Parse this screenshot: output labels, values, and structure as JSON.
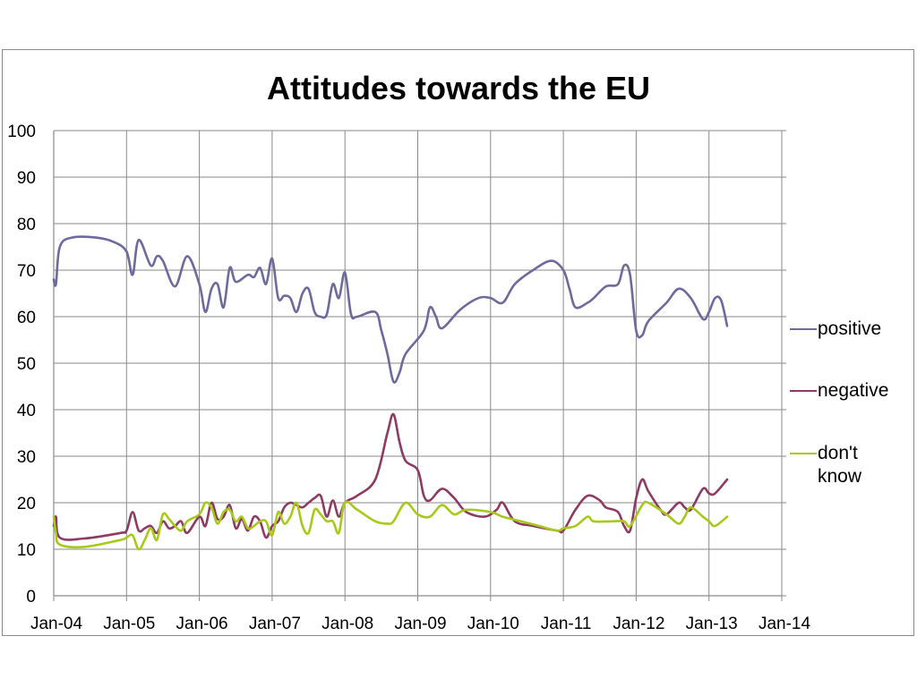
{
  "chart_data": {
    "type": "line",
    "title": "Attitudes towards the EU",
    "xlabel": "",
    "ylabel": "",
    "ylim": [
      0,
      100
    ],
    "yticks": [
      0,
      10,
      20,
      30,
      40,
      50,
      60,
      70,
      80,
      90,
      100
    ],
    "xticks": [
      "Jan-04",
      "Jan-05",
      "Jan-06",
      "Jan-07",
      "Jan-08",
      "Jan-09",
      "Jan-10",
      "Jan-11",
      "Jan-12",
      "Jan-13",
      "Jan-14"
    ],
    "xrange": [
      "2004-01",
      "2014-01"
    ],
    "grid": true,
    "legend_position": "right",
    "series": [
      {
        "name": "positive",
        "color": "#6e6a9c",
        "points": [
          [
            "2004-01",
            68
          ],
          [
            "2004-01",
            67
          ],
          [
            "2004-02",
            75
          ],
          [
            "2004-04",
            77
          ],
          [
            "2004-08",
            77
          ],
          [
            "2004-11",
            76
          ],
          [
            "2005-01",
            74
          ],
          [
            "2005-02",
            69
          ],
          [
            "2005-03",
            76.5
          ],
          [
            "2005-05",
            71
          ],
          [
            "2005-06",
            73
          ],
          [
            "2005-07",
            72
          ],
          [
            "2005-09",
            66.5
          ],
          [
            "2005-11",
            73
          ],
          [
            "2006-01",
            67
          ],
          [
            "2006-02",
            61
          ],
          [
            "2006-03",
            66
          ],
          [
            "2006-04",
            67
          ],
          [
            "2006-05",
            62
          ],
          [
            "2006-06",
            70.5
          ],
          [
            "2006-07",
            67.5
          ],
          [
            "2006-09",
            69
          ],
          [
            "2006-10",
            68.5
          ],
          [
            "2006-11",
            70.5
          ],
          [
            "2006-12",
            67
          ],
          [
            "2007-01",
            72.5
          ],
          [
            "2007-02",
            64
          ],
          [
            "2007-03",
            64.5
          ],
          [
            "2007-04",
            64
          ],
          [
            "2007-05",
            61
          ],
          [
            "2007-06",
            65
          ],
          [
            "2007-07",
            66
          ],
          [
            "2007-08",
            61
          ],
          [
            "2007-09",
            60
          ],
          [
            "2007-10",
            60.5
          ],
          [
            "2007-11",
            67
          ],
          [
            "2007-12",
            64
          ],
          [
            "2008-01",
            69.5
          ],
          [
            "2008-02",
            60.5
          ],
          [
            "2008-03",
            60
          ],
          [
            "2008-06",
            61
          ],
          [
            "2008-07",
            57
          ],
          [
            "2008-08",
            52
          ],
          [
            "2008-09",
            46
          ],
          [
            "2008-10",
            48
          ],
          [
            "2008-11",
            52
          ],
          [
            "2009-02",
            57
          ],
          [
            "2009-03",
            62
          ],
          [
            "2009-04",
            60
          ],
          [
            "2009-05",
            57.5
          ],
          [
            "2009-08",
            61.5
          ],
          [
            "2009-11",
            64
          ],
          [
            "2010-01",
            64
          ],
          [
            "2010-03",
            63
          ],
          [
            "2010-05",
            67
          ],
          [
            "2010-08",
            70
          ],
          [
            "2010-11",
            72
          ],
          [
            "2011-01",
            70
          ],
          [
            "2011-02",
            66
          ],
          [
            "2011-03",
            62
          ],
          [
            "2011-05",
            63
          ],
          [
            "2011-06",
            64
          ],
          [
            "2011-08",
            66.5
          ],
          [
            "2011-10",
            67
          ],
          [
            "2011-11",
            71
          ],
          [
            "2011-12",
            69
          ],
          [
            "2012-01",
            57
          ],
          [
            "2012-02",
            56
          ],
          [
            "2012-03",
            59
          ],
          [
            "2012-06",
            63
          ],
          [
            "2012-08",
            66
          ],
          [
            "2012-10",
            64
          ],
          [
            "2012-12",
            59.5
          ],
          [
            "2013-01",
            61
          ],
          [
            "2013-02",
            64
          ],
          [
            "2013-03",
            63.5
          ],
          [
            "2013-04",
            58
          ]
        ]
      },
      {
        "name": "negative",
        "color": "#8e3b63",
        "points": [
          [
            "2004-01",
            15
          ],
          [
            "2004-01",
            17
          ],
          [
            "2004-02",
            12.5
          ],
          [
            "2004-06",
            12.3
          ],
          [
            "2004-12",
            13.5
          ],
          [
            "2005-01",
            14
          ],
          [
            "2005-02",
            18
          ],
          [
            "2005-03",
            14
          ],
          [
            "2005-04",
            14.5
          ],
          [
            "2005-05",
            15
          ],
          [
            "2005-06",
            13.5
          ],
          [
            "2005-07",
            16
          ],
          [
            "2005-08",
            14.5
          ],
          [
            "2005-09",
            15
          ],
          [
            "2005-10",
            16
          ],
          [
            "2005-11",
            13.5
          ],
          [
            "2006-01",
            17
          ],
          [
            "2006-02",
            15
          ],
          [
            "2006-03",
            20
          ],
          [
            "2006-04",
            16.5
          ],
          [
            "2006-05",
            17
          ],
          [
            "2006-06",
            19.5
          ],
          [
            "2006-07",
            14.5
          ],
          [
            "2006-08",
            16.5
          ],
          [
            "2006-09",
            14
          ],
          [
            "2006-10",
            17
          ],
          [
            "2006-11",
            16
          ],
          [
            "2006-12",
            12.5
          ],
          [
            "2007-01",
            15
          ],
          [
            "2007-02",
            16
          ],
          [
            "2007-03",
            19
          ],
          [
            "2007-04",
            20
          ],
          [
            "2007-05",
            19.5
          ],
          [
            "2007-06",
            19
          ],
          [
            "2007-07",
            20
          ],
          [
            "2007-08",
            21
          ],
          [
            "2007-09",
            21.5
          ],
          [
            "2007-10",
            17
          ],
          [
            "2007-11",
            20.5
          ],
          [
            "2007-12",
            17
          ],
          [
            "2008-01",
            20
          ],
          [
            "2008-03",
            21.5
          ],
          [
            "2008-06",
            25
          ],
          [
            "2008-08",
            35
          ],
          [
            "2008-09",
            39
          ],
          [
            "2008-10",
            33
          ],
          [
            "2008-11",
            29
          ],
          [
            "2009-01",
            27
          ],
          [
            "2009-02",
            21.5
          ],
          [
            "2009-03",
            20.5
          ],
          [
            "2009-05",
            23
          ],
          [
            "2009-07",
            21
          ],
          [
            "2009-09",
            18
          ],
          [
            "2009-12",
            17
          ],
          [
            "2010-02",
            18.5
          ],
          [
            "2010-03",
            20
          ],
          [
            "2010-05",
            16
          ],
          [
            "2010-08",
            15
          ],
          [
            "2010-12",
            14
          ],
          [
            "2011-01",
            14
          ],
          [
            "2011-03",
            18.5
          ],
          [
            "2011-05",
            21.5
          ],
          [
            "2011-07",
            20.5
          ],
          [
            "2011-08",
            19
          ],
          [
            "2011-10",
            18
          ],
          [
            "2011-11",
            15
          ],
          [
            "2011-12",
            14
          ],
          [
            "2012-01",
            21
          ],
          [
            "2012-02",
            25
          ],
          [
            "2012-03",
            22.5
          ],
          [
            "2012-05",
            18.5
          ],
          [
            "2012-06",
            17.5
          ],
          [
            "2012-08",
            20
          ],
          [
            "2012-09",
            19
          ],
          [
            "2012-10",
            18.5
          ],
          [
            "2012-12",
            23
          ],
          [
            "2013-01",
            22
          ],
          [
            "2013-02",
            22
          ],
          [
            "2013-04",
            25
          ]
        ]
      },
      {
        "name": "don't know",
        "color": "#a7c919",
        "points": [
          [
            "2004-01",
            17
          ],
          [
            "2004-01",
            13.5
          ],
          [
            "2004-02",
            11
          ],
          [
            "2004-06",
            10.5
          ],
          [
            "2004-12",
            12
          ],
          [
            "2005-01",
            12.5
          ],
          [
            "2005-02",
            13
          ],
          [
            "2005-03",
            10
          ],
          [
            "2005-04",
            12
          ],
          [
            "2005-05",
            14.5
          ],
          [
            "2005-06",
            12
          ],
          [
            "2005-07",
            17.5
          ],
          [
            "2005-08",
            16.5
          ],
          [
            "2005-09",
            15
          ],
          [
            "2005-10",
            14
          ],
          [
            "2005-11",
            16
          ],
          [
            "2006-01",
            17.5
          ],
          [
            "2006-02",
            20
          ],
          [
            "2006-03",
            19
          ],
          [
            "2006-04",
            15.5
          ],
          [
            "2006-05",
            18
          ],
          [
            "2006-06",
            18.5
          ],
          [
            "2006-07",
            16
          ],
          [
            "2006-08",
            17
          ],
          [
            "2006-09",
            14.5
          ],
          [
            "2006-10",
            15
          ],
          [
            "2006-11",
            16
          ],
          [
            "2006-12",
            16
          ],
          [
            "2007-01",
            13
          ],
          [
            "2007-02",
            18
          ],
          [
            "2007-03",
            15.5
          ],
          [
            "2007-04",
            17
          ],
          [
            "2007-05",
            20
          ],
          [
            "2007-06",
            15
          ],
          [
            "2007-07",
            13.5
          ],
          [
            "2007-08",
            18.5
          ],
          [
            "2007-09",
            17.5
          ],
          [
            "2007-10",
            16
          ],
          [
            "2007-11",
            16
          ],
          [
            "2007-12",
            13.5
          ],
          [
            "2008-01",
            20
          ],
          [
            "2008-03",
            18.5
          ],
          [
            "2008-06",
            16
          ],
          [
            "2008-08",
            15.5
          ],
          [
            "2008-09",
            16
          ],
          [
            "2008-11",
            20
          ],
          [
            "2009-01",
            17.5
          ],
          [
            "2009-03",
            17
          ],
          [
            "2009-05",
            19.5
          ],
          [
            "2009-07",
            17.5
          ],
          [
            "2009-09",
            18.5
          ],
          [
            "2010-01",
            18
          ],
          [
            "2010-03",
            17
          ],
          [
            "2010-06",
            16
          ],
          [
            "2010-09",
            15
          ],
          [
            "2010-12",
            14
          ],
          [
            "2011-01",
            14.5
          ],
          [
            "2011-03",
            15
          ],
          [
            "2011-05",
            17
          ],
          [
            "2011-06",
            16
          ],
          [
            "2011-09",
            16
          ],
          [
            "2011-11",
            16
          ],
          [
            "2011-12",
            15
          ],
          [
            "2012-02",
            19.5
          ],
          [
            "2012-03",
            20
          ],
          [
            "2012-06",
            17.5
          ],
          [
            "2012-08",
            15.5
          ],
          [
            "2012-09",
            17
          ],
          [
            "2012-10",
            19
          ],
          [
            "2012-12",
            17
          ],
          [
            "2013-01",
            16
          ],
          [
            "2013-02",
            15
          ],
          [
            "2013-04",
            17
          ]
        ]
      }
    ]
  },
  "legend": {
    "items": [
      "positive",
      "negative",
      "don't know"
    ]
  }
}
